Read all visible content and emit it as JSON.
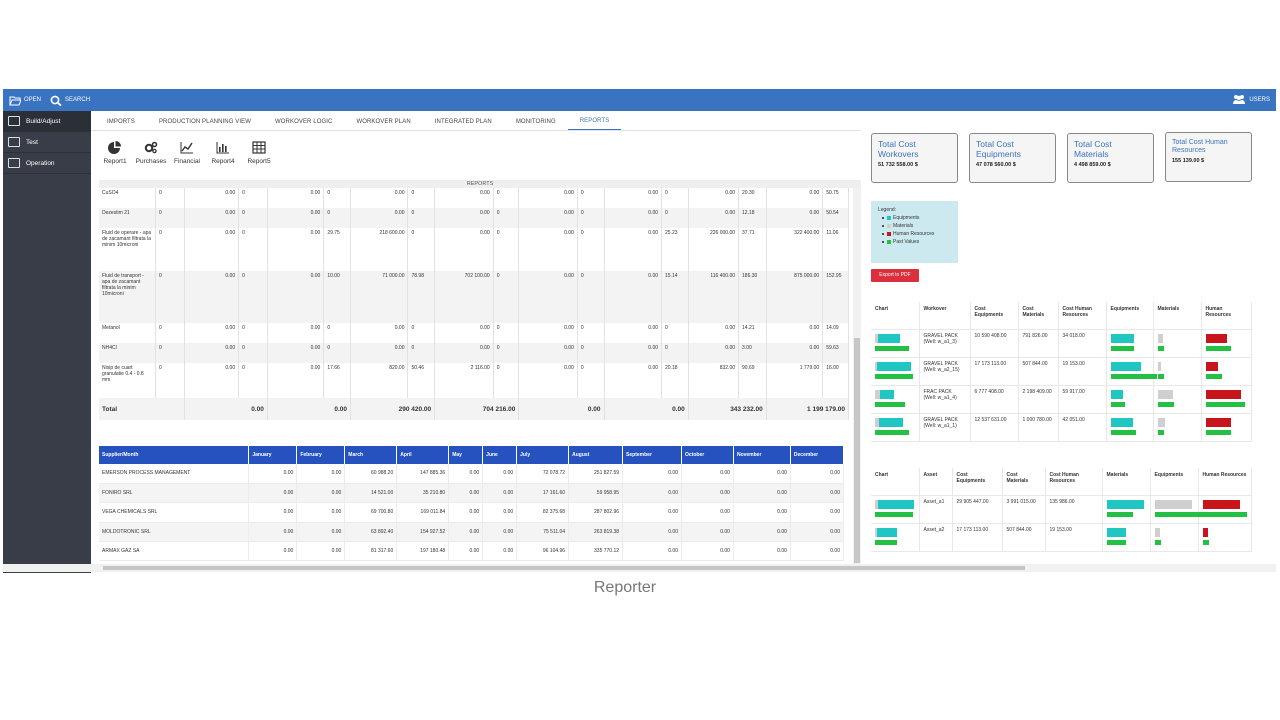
{
  "topbar": {
    "open": "OPEN",
    "search": "SEARCH",
    "users": "USERS"
  },
  "sidebar": {
    "items": [
      {
        "label": "Build/Adjust"
      },
      {
        "label": "Test"
      },
      {
        "label": "Operation"
      }
    ]
  },
  "tabs": [
    "IMPORTS",
    "PRODUCTION PLANNING VIEW",
    "WORKOVER LOGIC",
    "WORKOVER PLAN",
    "INTEGRATED PLAN",
    "MONITORING",
    "REPORTS"
  ],
  "toolbar": [
    "Report1",
    "Purchases",
    "Financial",
    "Report4",
    "Report5"
  ],
  "reports_header": "REPORTS",
  "materials": {
    "rows": [
      {
        "name": "CuSO4",
        "c": [
          "0",
          "0.00",
          "0",
          "0.00",
          "0",
          "0.00",
          "0",
          "0.00",
          "0",
          "0.00",
          "0",
          "0.00",
          "0",
          "0.00",
          "20.30",
          "0.00",
          "50.75"
        ]
      },
      {
        "name": "Dezestim 21",
        "c": [
          "0",
          "0.00",
          "0",
          "0.00",
          "0",
          "0.00",
          "0",
          "0.00",
          "0",
          "0.00",
          "0",
          "0.00",
          "0",
          "0.00",
          "12.18",
          "0.00",
          "50.54"
        ]
      },
      {
        "name": "Fluid de operare - apa de zacamant filtrata la minim 10microni",
        "c": [
          "0",
          "0.00",
          "0",
          "0.00",
          "29.75",
          "218 600.00",
          "0",
          "0.00",
          "0",
          "0.00",
          "0",
          "0.00",
          "25.23",
          "226 000.00",
          "37.71",
          "322 400.00",
          "11.06"
        ]
      },
      {
        "name": "Fluid de transport - apa de zacamant filtrata la minim 10microni",
        "c": [
          "0",
          "0.00",
          "0",
          "0.00",
          "10.00",
          "71 000.00",
          "78.98",
          "702 100.00",
          "0",
          "0.00",
          "0",
          "0.00",
          "15.14",
          "116 400.00",
          "186.30",
          "875 000.00",
          "152.95"
        ]
      },
      {
        "name": "Metanol",
        "c": [
          "0",
          "0.00",
          "0",
          "0.00",
          "0",
          "0.00",
          "0",
          "0.00",
          "0",
          "0.00",
          "0",
          "0.00",
          "0",
          "0.00",
          "14.21",
          "0.00",
          "14.09"
        ]
      },
      {
        "name": "NH4Cl",
        "c": [
          "0",
          "0.00",
          "0",
          "0.00",
          "0",
          "0.00",
          "0",
          "0.00",
          "0",
          "0.00",
          "0",
          "0.00",
          "0",
          "0.00",
          "3.00",
          "0.00",
          "59.63"
        ]
      },
      {
        "name": "Nisip de cuart granulatie 0.4 - 0.8 mm",
        "c": [
          "0",
          "0.00",
          "0",
          "0.00",
          "17.66",
          "820.00",
          "50.46",
          "2 116.00",
          "0",
          "0.00",
          "0",
          "0.00",
          "20.18",
          "832.00",
          "90.69",
          "1 779.00",
          "16.00"
        ]
      }
    ],
    "total": {
      "label": "Total",
      "values": [
        "0.00",
        "0.00",
        "290 420.00",
        "704 216.00",
        "0.00",
        "0.00",
        "343 232.00",
        "1 199 179.00"
      ]
    }
  },
  "suppliers": {
    "headers": [
      "Supplier/Month",
      "January",
      "February",
      "March",
      "April",
      "May",
      "June",
      "July",
      "August",
      "September",
      "October",
      "November",
      "December"
    ],
    "rows": [
      [
        "EMERSON PROCESS MANAGEMENT",
        "0.00",
        "0.00",
        "60 988.20",
        "147 885.36",
        "0.00",
        "0.00",
        "72 078.72",
        "251 827.59",
        "0.00",
        "0.00",
        "0.00",
        "0.00"
      ],
      [
        "FONIRO SRL",
        "0.00",
        "0.00",
        "14 521.00",
        "35 210.80",
        "0.00",
        "0.00",
        "17 161.60",
        "59 958.95",
        "0.00",
        "0.00",
        "0.00",
        "0.00"
      ],
      [
        "VEGA CHEMICALS SRL",
        "0.00",
        "0.00",
        "69 700.80",
        "169 011.84",
        "0.00",
        "0.00",
        "82 375.68",
        "287 802.96",
        "0.00",
        "0.00",
        "0.00",
        "0.00"
      ],
      [
        "MOLDOTRONIC SRL",
        "0.00",
        "0.00",
        "63 892.40",
        "154 927.52",
        "0.00",
        "0.00",
        "75 511.04",
        "263 819.38",
        "0.00",
        "0.00",
        "0.00",
        "0.00"
      ],
      [
        "ARMAX GAZ SA",
        "0.00",
        "0.00",
        "81 317.60",
        "197 180.48",
        "0.00",
        "0.00",
        "96 104.96",
        "335 770.12",
        "0.00",
        "0.00",
        "0.00",
        "0.00"
      ]
    ]
  },
  "cards": [
    {
      "title": "Total Cost Workovers",
      "value": "51 732 558.00 $"
    },
    {
      "title": "Total Cost Equipments",
      "value": "47 078 560.00 $"
    },
    {
      "title": "Total Cost Materials",
      "value": "4 498 859.00 $"
    },
    {
      "title": "Total Cost Human Resources",
      "value": "155 139.00 $"
    }
  ],
  "legend": {
    "title": "Legend:",
    "items": [
      {
        "label": "Equipments",
        "color": "#20c6c2"
      },
      {
        "label": "Materials",
        "color": "#cfcfcf"
      },
      {
        "label": "Human Resources",
        "color": "#c8141b"
      },
      {
        "label": "Past Values",
        "color": "#23c043"
      }
    ]
  },
  "export_label": "Export to PDF",
  "workover_table": {
    "headers": [
      "Chart",
      "Workover",
      "Cost Equipments",
      "Cost Materials",
      "Cost Human Resources",
      "Equipments",
      "Materials",
      "Human Resources"
    ],
    "rows": [
      {
        "name": "GRAVEL PACK",
        "well": "(Well: w_a1_3)",
        "eq": "10 590 408.00",
        "mat": "791 826.00",
        "hr": "34 018.00",
        "bars": {
          "chart": [
            0.55,
            0.08,
            0.0,
            0.85
          ],
          "eq": [
            0.65,
            0.65
          ],
          "mat": [
            0.32,
            0.38
          ],
          "hr": [
            0.5,
            0.6
          ]
        }
      },
      {
        "name": "GRAVEL PACK",
        "well": "(Well: w_a2_15)",
        "eq": "17 173 113.00",
        "mat": "507 844.00",
        "hr": "19 153.00",
        "bars": {
          "chart": [
            0.85,
            0.04,
            0.0,
            0.95
          ],
          "eq": [
            0.85,
            1.3
          ],
          "mat": [
            0.2,
            0.38
          ],
          "hr": [
            0.3,
            0.4
          ]
        }
      },
      {
        "name": "FRAC PACK",
        "well": "(Well: w_a1_4)",
        "eq": "6 777 408.00",
        "mat": "2 198 409.00",
        "hr": "59 917.00",
        "bars": {
          "chart": [
            0.35,
            0.12,
            0.0,
            0.75
          ],
          "eq": [
            0.35,
            0.4
          ],
          "mat": [
            0.85,
            0.9
          ],
          "hr": [
            0.85,
            0.95
          ]
        }
      },
      {
        "name": "GRAVEL PACK",
        "well": "(Well: w_a1_1)",
        "eq": "12 537 631.00",
        "mat": "1 000 780.00",
        "hr": "42 051.00",
        "bars": {
          "chart": [
            0.6,
            0.1,
            0.0,
            0.85
          ],
          "eq": [
            0.62,
            0.7
          ],
          "mat": [
            0.42,
            0.38
          ],
          "hr": [
            0.6,
            0.6
          ]
        }
      }
    ]
  },
  "asset_table": {
    "headers": [
      "Chart",
      "Asset",
      "Cost Equipments",
      "Cost Materials",
      "Cost Human Resources",
      "Materials",
      "Equipments",
      "Human Resources"
    ],
    "rows": [
      {
        "name": "Asset_a1",
        "eq": "29 905 447.00",
        "mat": "3 991 015.00",
        "hr": "135 986.00",
        "bars": {
          "chart": [
            0.9,
            0.08,
            0.0,
            0.95
          ],
          "mat": [
            0.85,
            0.6
          ],
          "eq": [
            0.85,
            2.1
          ],
          "hr": [
            0.85,
            0.95
          ]
        }
      },
      {
        "name": "Asset_a2",
        "eq": "17 173 113.00",
        "mat": "507 844.00",
        "hr": "19 153.00",
        "bars": {
          "chart": [
            0.5,
            0.04,
            0.0,
            0.55
          ],
          "mat": [
            0.45,
            0.45
          ],
          "eq": [
            0.12,
            0.15
          ],
          "hr": [
            0.12,
            0.15
          ]
        }
      }
    ]
  },
  "caption": "Reporter"
}
